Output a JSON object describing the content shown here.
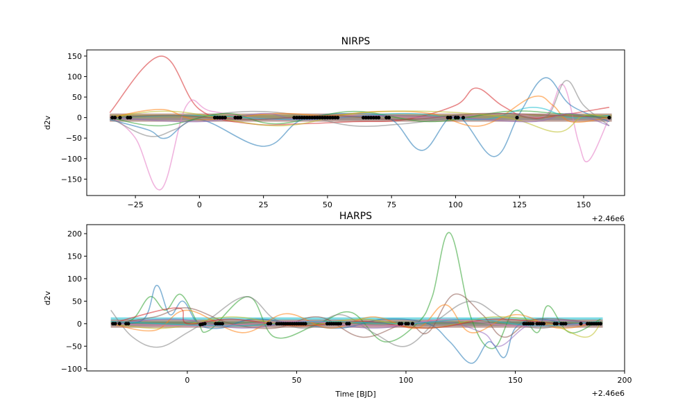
{
  "chart_data": [
    {
      "type": "line",
      "title": "NIRPS",
      "xlabel": "",
      "ylabel": "d2v",
      "x_offset_label": "+2.46e6",
      "xlim": [
        -44,
        166
      ],
      "ylim": [
        -190,
        165
      ],
      "xticks": [
        -25,
        0,
        25,
        50,
        75,
        100,
        125,
        150
      ],
      "yticks": [
        -150,
        -100,
        -50,
        0,
        50,
        100,
        150
      ],
      "colors": [
        "#1f77b4",
        "#ff7f0e",
        "#2ca02c",
        "#d62728",
        "#9467bd",
        "#8c564b",
        "#e377c2",
        "#7f7f7f",
        "#bcbd22",
        "#17becf"
      ],
      "series": [
        {
          "color": "#d62728",
          "x": [
            -35,
            -15,
            0,
            20,
            40,
            60,
            80,
            100,
            108,
            118,
            128,
            140,
            160
          ],
          "y": [
            12,
            150,
            20,
            -15,
            -15,
            -10,
            -5,
            30,
            72,
            30,
            0,
            5,
            25
          ]
        },
        {
          "color": "#e377c2",
          "x": [
            -35,
            -25,
            -15,
            -5,
            5,
            30,
            60,
            90,
            120,
            135,
            142,
            148,
            152,
            160
          ],
          "y": [
            5,
            -50,
            -175,
            30,
            15,
            -5,
            5,
            0,
            10,
            5,
            80,
            -60,
            -105,
            0
          ]
        },
        {
          "color": "#1f77b4",
          "x": [
            -35,
            -20,
            -13,
            0,
            25,
            40,
            60,
            75,
            87,
            100,
            115,
            125,
            135,
            145,
            160
          ],
          "y": [
            -5,
            -30,
            -50,
            -5,
            -70,
            -5,
            10,
            -5,
            -80,
            5,
            -95,
            10,
            97,
            30,
            -10
          ]
        },
        {
          "color": "#7f7f7f",
          "x": [
            -35,
            -20,
            -10,
            0,
            20,
            40,
            60,
            80,
            100,
            120,
            135,
            143,
            150,
            160
          ],
          "y": [
            0,
            -45,
            -30,
            0,
            15,
            5,
            -20,
            -15,
            0,
            10,
            0,
            90,
            30,
            -20
          ]
        },
        {
          "color": "#ff7f0e",
          "x": [
            -35,
            -15,
            0,
            30,
            50,
            70,
            90,
            110,
            130,
            138,
            145,
            160
          ],
          "y": [
            0,
            20,
            -5,
            10,
            5,
            15,
            10,
            -20,
            50,
            30,
            -10,
            0
          ]
        },
        {
          "color": "#2ca02c",
          "x": [
            -35,
            -15,
            10,
            30,
            60,
            90,
            120,
            140,
            160
          ],
          "y": [
            0,
            -20,
            10,
            -15,
            15,
            -10,
            15,
            10,
            0
          ]
        },
        {
          "color": "#17becf",
          "x": [
            -35,
            0,
            40,
            80,
            110,
            130,
            145,
            160
          ],
          "y": [
            0,
            5,
            -5,
            10,
            -5,
            25,
            0,
            5
          ]
        },
        {
          "color": "#bcbd22",
          "x": [
            -35,
            -10,
            30,
            60,
            90,
            120,
            140,
            150,
            160
          ],
          "y": [
            0,
            15,
            -20,
            10,
            15,
            0,
            -35,
            5,
            0
          ]
        },
        {
          "color": "#9467bd",
          "x": [
            -35,
            0,
            25,
            40,
            70,
            100,
            130,
            145,
            160
          ],
          "y": [
            0,
            -10,
            10,
            -5,
            5,
            0,
            -10,
            10,
            -20
          ]
        },
        {
          "color": "#8c564b",
          "x": [
            -35,
            -10,
            20,
            50,
            80,
            110,
            140,
            160
          ],
          "y": [
            0,
            5,
            -5,
            5,
            -5,
            10,
            5,
            0
          ]
        }
      ],
      "bands": [
        {
          "color": "#8c564b",
          "y": 0,
          "half_width": 10
        },
        {
          "color": "#bcbd22",
          "y": 3,
          "half_width": 4
        },
        {
          "color": "#7f7f7f",
          "y": 0,
          "half_width": 6
        }
      ],
      "points": {
        "color": "#000000",
        "x": [
          -34,
          -33,
          -31,
          -28,
          -27,
          6,
          7,
          8,
          9,
          10,
          14,
          15,
          16,
          37,
          38,
          39,
          40,
          41,
          42,
          43,
          44,
          45,
          46,
          47,
          48,
          49,
          50,
          51,
          52,
          53,
          54,
          64,
          65,
          66,
          67,
          68,
          69,
          70,
          73,
          74,
          97,
          98,
          100,
          101,
          103,
          124,
          160
        ],
        "y": [
          0,
          0,
          0,
          0,
          0,
          0,
          0,
          0,
          0,
          0,
          0,
          0,
          0,
          0,
          0,
          0,
          0,
          0,
          0,
          0,
          0,
          0,
          0,
          0,
          0,
          0,
          0,
          0,
          0,
          0,
          0,
          0,
          0,
          0,
          0,
          0,
          0,
          0,
          0,
          0,
          0,
          0,
          0,
          0,
          0,
          0,
          0
        ]
      }
    },
    {
      "type": "line",
      "title": "HARPS",
      "xlabel": "Time [BJD]",
      "ylabel": "d2v",
      "x_offset_label": "+2.46e6",
      "xlim": [
        -46,
        200
      ],
      "ylim": [
        -105,
        220
      ],
      "xticks": [
        0,
        50,
        100,
        150,
        200
      ],
      "yticks": [
        -100,
        -50,
        0,
        50,
        100,
        150,
        200
      ],
      "series": [
        {
          "color": "#2ca02c",
          "x": [
            -35,
            -25,
            -17,
            -10,
            -3,
            5,
            10,
            28,
            40,
            60,
            75,
            90,
            105,
            112,
            120,
            130,
            140,
            150,
            160,
            165,
            175,
            189
          ],
          "y": [
            0,
            10,
            60,
            30,
            65,
            0,
            -15,
            60,
            -30,
            0,
            25,
            -40,
            0,
            60,
            202,
            10,
            -55,
            30,
            -20,
            40,
            -20,
            10
          ]
        },
        {
          "color": "#1f77b4",
          "x": [
            -35,
            -20,
            -14,
            -8,
            -2,
            5,
            15,
            30,
            50,
            70,
            90,
            110,
            120,
            130,
            138,
            145,
            150,
            160,
            175,
            189
          ],
          "y": [
            0,
            10,
            85,
            20,
            50,
            0,
            -10,
            10,
            0,
            -10,
            10,
            0,
            -40,
            -88,
            -40,
            -75,
            -10,
            10,
            0,
            0
          ]
        },
        {
          "color": "#7f7f7f",
          "x": [
            -35,
            -25,
            -13,
            0,
            10,
            27,
            40,
            55,
            70,
            85,
            100,
            115,
            130,
            145,
            160,
            175,
            189
          ],
          "y": [
            30,
            -30,
            -52,
            -20,
            10,
            60,
            10,
            -10,
            20,
            -20,
            -50,
            10,
            50,
            10,
            -10,
            0,
            0
          ]
        },
        {
          "color": "#8c564b",
          "x": [
            -35,
            -15,
            0,
            20,
            40,
            60,
            80,
            100,
            110,
            122,
            135,
            145,
            160,
            189
          ],
          "y": [
            0,
            15,
            35,
            0,
            -10,
            15,
            -30,
            0,
            -20,
            65,
            20,
            -30,
            10,
            0
          ]
        },
        {
          "color": "#ff7f0e",
          "x": [
            -35,
            -15,
            0,
            25,
            45,
            65,
            85,
            105,
            118,
            130,
            150,
            170,
            189
          ],
          "y": [
            0,
            -15,
            30,
            -20,
            22,
            -10,
            15,
            -10,
            42,
            -20,
            20,
            -10,
            5
          ]
        },
        {
          "color": "#bcbd22",
          "x": [
            -35,
            -10,
            20,
            50,
            80,
            110,
            140,
            165,
            182,
            189
          ],
          "y": [
            0,
            -10,
            15,
            -5,
            10,
            -10,
            15,
            0,
            -30,
            0
          ]
        },
        {
          "color": "#9467bd",
          "x": [
            -35,
            -5,
            25,
            55,
            85,
            115,
            135,
            143,
            160,
            189
          ],
          "y": [
            0,
            10,
            -10,
            5,
            -10,
            5,
            -20,
            -50,
            5,
            0
          ]
        },
        {
          "color": "#d62728",
          "x": [
            -35,
            -5,
            0,
            20,
            50,
            80,
            110,
            140,
            170,
            189
          ],
          "y": [
            0,
            35,
            0,
            10,
            -5,
            5,
            -10,
            10,
            0,
            0
          ]
        },
        {
          "color": "#e377c2",
          "x": [
            -35,
            10,
            50,
            90,
            120,
            150,
            189
          ],
          "y": [
            0,
            -5,
            5,
            -5,
            10,
            -5,
            0
          ]
        },
        {
          "color": "#17becf",
          "x": [
            -35,
            20,
            60,
            100,
            130,
            160,
            189
          ],
          "y": [
            5,
            -5,
            5,
            0,
            10,
            -5,
            5
          ]
        }
      ],
      "bands": [
        {
          "color": "#17becf",
          "y": 11,
          "half_width": 3
        },
        {
          "color": "#8c564b",
          "y": 0,
          "half_width": 9
        },
        {
          "color": "#2ca02c",
          "y": 2,
          "half_width": 3
        },
        {
          "color": "#7f7f7f",
          "y": 0,
          "half_width": 5
        }
      ],
      "points": {
        "color": "#000000",
        "x": [
          -34,
          -33,
          -31,
          -28,
          -27,
          6,
          7,
          8,
          13,
          14,
          15,
          16,
          37,
          38,
          41,
          42,
          43,
          44,
          45,
          46,
          47,
          48,
          49,
          50,
          51,
          52,
          53,
          54,
          64,
          65,
          66,
          67,
          68,
          69,
          70,
          73,
          74,
          97,
          98,
          100,
          101,
          103,
          154,
          155,
          156,
          157,
          158,
          160,
          161,
          162,
          163,
          168,
          169,
          171,
          172,
          173,
          180,
          183,
          184,
          185,
          186,
          187,
          188,
          189
        ],
        "y": [
          0,
          0,
          0,
          0,
          0,
          -2,
          -1,
          0,
          0,
          0,
          0,
          0,
          0,
          0,
          0,
          0,
          0,
          0,
          0,
          0,
          0,
          0,
          0,
          0,
          0,
          0,
          0,
          0,
          0,
          0,
          0,
          0,
          0,
          0,
          0,
          0,
          0,
          0,
          0,
          0,
          0,
          0,
          0,
          0,
          0,
          0,
          0,
          0,
          0,
          0,
          0,
          0,
          0,
          0,
          0,
          0,
          0,
          0,
          0,
          0,
          0,
          0,
          0,
          0
        ]
      }
    }
  ]
}
